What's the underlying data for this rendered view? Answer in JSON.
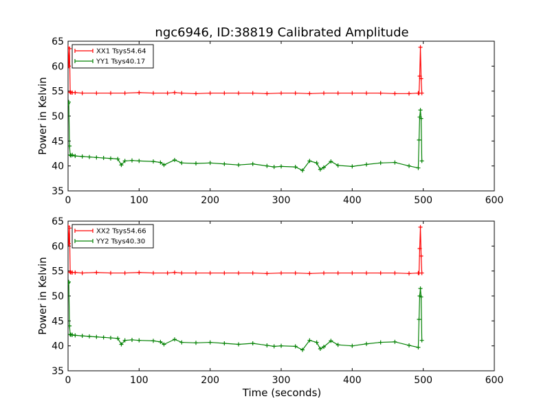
{
  "chart_data": {
    "title": "ngc6946, ID:38819 Calibrated Amplitude",
    "xlabel": "Time (seconds)",
    "colors": {
      "xx": "#ff0000",
      "yy": "#008000"
    },
    "charts": [
      {
        "type": "line",
        "ylabel": "Power in Kelvin",
        "xlim": [
          0,
          600
        ],
        "ylim": [
          35,
          65
        ],
        "xticks": [
          0,
          100,
          200,
          300,
          400,
          500,
          600
        ],
        "yticks": [
          35,
          40,
          45,
          50,
          55,
          60,
          65
        ],
        "legend_position": "top-left",
        "series": [
          {
            "name": "XX1 Tsys54.64",
            "color": "#ff0000",
            "x": [
              0,
              1,
              2,
              3,
              4,
              6,
              10,
              20,
              40,
              60,
              80,
              100,
              120,
              140,
              150,
              160,
              180,
              200,
              220,
              240,
              260,
              280,
              300,
              320,
              340,
              360,
              380,
              400,
              420,
              440,
              460,
              480,
              493,
              494,
              495,
              496,
              497,
              498
            ],
            "y": [
              63.8,
              60,
              63.5,
              54.8,
              54.7,
              54.7,
              54.7,
              54.6,
              54.6,
              54.6,
              54.6,
              54.7,
              54.6,
              54.6,
              54.7,
              54.6,
              54.5,
              54.6,
              54.6,
              54.6,
              54.6,
              54.5,
              54.6,
              54.6,
              54.5,
              54.6,
              54.6,
              54.6,
              54.6,
              54.6,
              54.5,
              54.5,
              54.6,
              54.6,
              58,
              63.8,
              57.5,
              54.6
            ]
          },
          {
            "name": "YY1 Tsys40.17",
            "color": "#008000",
            "x": [
              0,
              1,
              2,
              3,
              4,
              6,
              10,
              20,
              30,
              40,
              50,
              60,
              70,
              75,
              80,
              90,
              100,
              120,
              130,
              135,
              150,
              160,
              180,
              200,
              220,
              240,
              260,
              280,
              290,
              300,
              320,
              330,
              340,
              350,
              355,
              360,
              370,
              380,
              400,
              420,
              440,
              460,
              480,
              493,
              494,
              495,
              496,
              497,
              498
            ],
            "y": [
              52.5,
              52.8,
              44,
              42.2,
              42.1,
              42.2,
              42.0,
              41.9,
              41.8,
              41.7,
              41.6,
              41.5,
              41.4,
              40.2,
              41.0,
              41.1,
              41.0,
              40.9,
              40.7,
              40.2,
              41.2,
              40.6,
              40.5,
              40.6,
              40.4,
              40.2,
              40.4,
              40.0,
              39.8,
              39.9,
              39.8,
              39.1,
              41.0,
              40.6,
              39.3,
              39.7,
              40.9,
              40.1,
              39.9,
              40.3,
              40.6,
              40.7,
              40.0,
              39.6,
              45.2,
              49.8,
              51.2,
              49.5,
              41.0
            ]
          }
        ]
      },
      {
        "type": "line",
        "ylabel": "Power in Kelvin",
        "xlim": [
          0,
          600
        ],
        "ylim": [
          35,
          65
        ],
        "xticks": [
          0,
          100,
          200,
          300,
          400,
          500,
          600
        ],
        "yticks": [
          35,
          40,
          45,
          50,
          55,
          60,
          65
        ],
        "legend_position": "top-left",
        "series": [
          {
            "name": "XX2 Tsys54.66",
            "color": "#ff0000",
            "x": [
              0,
              1,
              2,
              3,
              4,
              6,
              10,
              20,
              40,
              60,
              80,
              100,
              120,
              140,
              150,
              160,
              180,
              200,
              220,
              240,
              260,
              280,
              300,
              320,
              340,
              360,
              380,
              400,
              420,
              440,
              460,
              480,
              493,
              494,
              495,
              496,
              497,
              498
            ],
            "y": [
              64.0,
              60.5,
              63.6,
              54.8,
              54.7,
              54.7,
              54.7,
              54.6,
              54.7,
              54.6,
              54.6,
              54.7,
              54.6,
              54.6,
              54.7,
              54.6,
              54.6,
              54.6,
              54.6,
              54.6,
              54.6,
              54.5,
              54.6,
              54.6,
              54.5,
              54.6,
              54.6,
              54.6,
              54.6,
              54.6,
              54.6,
              54.5,
              54.6,
              54.6,
              59.5,
              63.8,
              58.0,
              54.6
            ]
          },
          {
            "name": "YY2 Tsys40.30",
            "color": "#008000",
            "x": [
              0,
              1,
              2,
              3,
              4,
              6,
              10,
              20,
              30,
              40,
              50,
              60,
              70,
              75,
              80,
              90,
              100,
              120,
              130,
              135,
              150,
              160,
              180,
              200,
              220,
              240,
              260,
              280,
              290,
              300,
              320,
              330,
              340,
              350,
              355,
              360,
              370,
              380,
              400,
              420,
              440,
              460,
              480,
              493,
              494,
              495,
              496,
              497,
              498
            ],
            "y": [
              52.6,
              52.8,
              44,
              42.3,
              42.2,
              42.2,
              42.1,
              42.0,
              41.9,
              41.8,
              41.7,
              41.6,
              41.5,
              40.3,
              41.1,
              41.2,
              41.1,
              41.0,
              40.8,
              40.3,
              41.3,
              40.7,
              40.6,
              40.7,
              40.5,
              40.3,
              40.5,
              40.1,
              39.9,
              40.0,
              39.9,
              39.2,
              41.1,
              40.7,
              39.4,
              39.8,
              41.0,
              40.2,
              40.0,
              40.4,
              40.7,
              40.8,
              40.1,
              39.7,
              45.3,
              50.0,
              51.5,
              49.8,
              41.1
            ]
          }
        ]
      }
    ]
  }
}
